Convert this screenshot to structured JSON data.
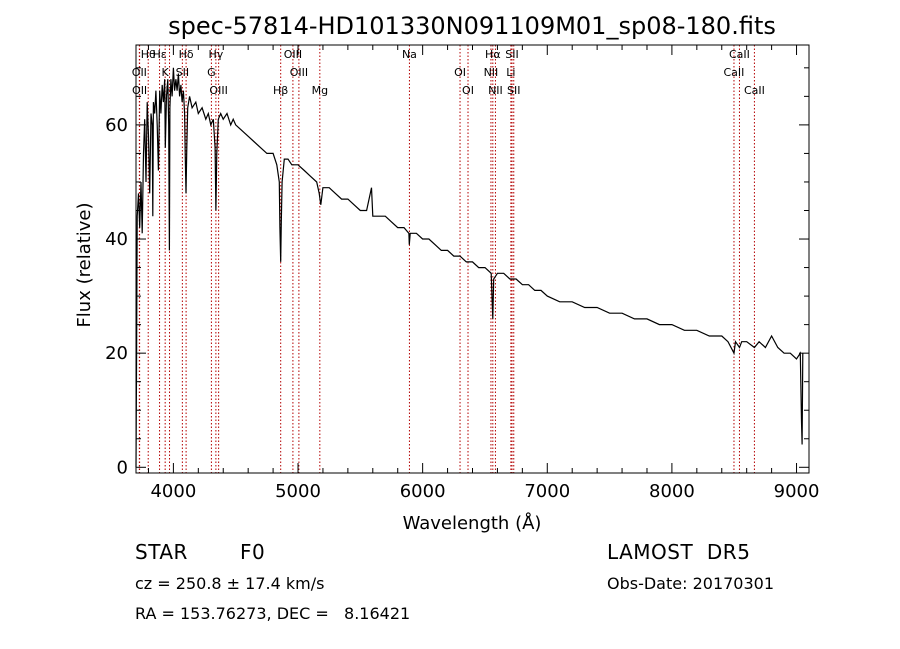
{
  "chart_data": {
    "type": "line",
    "title": "spec-57814-HD101330N091109M01_sp08-180.fits",
    "xlabel": "Wavelength (Å)",
    "ylabel": "Flux (relative)",
    "xlim": [
      3700,
      9100
    ],
    "ylim": [
      -1,
      74
    ],
    "xticks": [
      4000,
      5000,
      6000,
      7000,
      8000,
      9000
    ],
    "yticks": [
      0,
      20,
      40,
      60
    ],
    "grid": false,
    "series": [
      {
        "points": [
          [
            3700,
            0
          ],
          [
            3705,
            20
          ],
          [
            3710,
            44
          ],
          [
            3720,
            48
          ],
          [
            3730,
            42
          ],
          [
            3740,
            50
          ],
          [
            3750,
            41
          ],
          [
            3760,
            55
          ],
          [
            3770,
            61
          ],
          [
            3780,
            50
          ],
          [
            3790,
            64
          ],
          [
            3800,
            58
          ],
          [
            3810,
            48
          ],
          [
            3820,
            62
          ],
          [
            3830,
            60
          ],
          [
            3835,
            44
          ],
          [
            3840,
            64
          ],
          [
            3850,
            62
          ],
          [
            3860,
            66
          ],
          [
            3870,
            60
          ],
          [
            3880,
            52
          ],
          [
            3890,
            66
          ],
          [
            3900,
            62
          ],
          [
            3910,
            67
          ],
          [
            3920,
            64
          ],
          [
            3930,
            68
          ],
          [
            3935,
            56
          ],
          [
            3945,
            65
          ],
          [
            3955,
            68
          ],
          [
            3962,
            60
          ],
          [
            3968,
            38
          ],
          [
            3972,
            63
          ],
          [
            3980,
            68
          ],
          [
            3990,
            65
          ],
          [
            4000,
            70
          ],
          [
            4010,
            66
          ],
          [
            4020,
            68
          ],
          [
            4030,
            66
          ],
          [
            4040,
            69
          ],
          [
            4050,
            65
          ],
          [
            4060,
            67
          ],
          [
            4070,
            64
          ],
          [
            4080,
            66
          ],
          [
            4090,
            62
          ],
          [
            4095,
            55
          ],
          [
            4101,
            48
          ],
          [
            4108,
            56
          ],
          [
            4115,
            63
          ],
          [
            4130,
            65
          ],
          [
            4150,
            63
          ],
          [
            4180,
            64
          ],
          [
            4200,
            62
          ],
          [
            4230,
            63
          ],
          [
            4260,
            61
          ],
          [
            4280,
            62
          ],
          [
            4300,
            60
          ],
          [
            4320,
            61
          ],
          [
            4335,
            56
          ],
          [
            4341,
            45
          ],
          [
            4348,
            55
          ],
          [
            4360,
            61
          ],
          [
            4380,
            62
          ],
          [
            4400,
            61
          ],
          [
            4430,
            62
          ],
          [
            4460,
            60
          ],
          [
            4480,
            61
          ],
          [
            4500,
            60
          ],
          [
            4550,
            59
          ],
          [
            4600,
            58
          ],
          [
            4650,
            57
          ],
          [
            4700,
            56
          ],
          [
            4750,
            55
          ],
          [
            4800,
            55
          ],
          [
            4830,
            53
          ],
          [
            4850,
            50
          ],
          [
            4855,
            42
          ],
          [
            4861,
            36
          ],
          [
            4866,
            43
          ],
          [
            4872,
            50
          ],
          [
            4890,
            54
          ],
          [
            4920,
            54
          ],
          [
            4950,
            53
          ],
          [
            5000,
            53
          ],
          [
            5050,
            52
          ],
          [
            5100,
            51
          ],
          [
            5150,
            50
          ],
          [
            5170,
            48
          ],
          [
            5183,
            46
          ],
          [
            5200,
            49
          ],
          [
            5250,
            49
          ],
          [
            5300,
            48
          ],
          [
            5350,
            47
          ],
          [
            5400,
            47
          ],
          [
            5450,
            46
          ],
          [
            5500,
            45
          ],
          [
            5550,
            45
          ],
          [
            5590,
            49
          ],
          [
            5600,
            44
          ],
          [
            5650,
            44
          ],
          [
            5700,
            44
          ],
          [
            5750,
            43
          ],
          [
            5800,
            42
          ],
          [
            5850,
            42
          ],
          [
            5890,
            41
          ],
          [
            5893,
            39
          ],
          [
            5900,
            41
          ],
          [
            5950,
            41
          ],
          [
            6000,
            40
          ],
          [
            6050,
            40
          ],
          [
            6100,
            39
          ],
          [
            6150,
            38
          ],
          [
            6200,
            38
          ],
          [
            6250,
            37
          ],
          [
            6300,
            37
          ],
          [
            6350,
            36
          ],
          [
            6400,
            36
          ],
          [
            6450,
            35
          ],
          [
            6500,
            35
          ],
          [
            6550,
            34
          ],
          [
            6563,
            26
          ],
          [
            6570,
            33
          ],
          [
            6600,
            34
          ],
          [
            6650,
            34
          ],
          [
            6700,
            33
          ],
          [
            6750,
            33
          ],
          [
            6800,
            32
          ],
          [
            6850,
            32
          ],
          [
            6900,
            31
          ],
          [
            6950,
            31
          ],
          [
            7000,
            30
          ],
          [
            7100,
            29
          ],
          [
            7200,
            29
          ],
          [
            7300,
            28
          ],
          [
            7400,
            28
          ],
          [
            7500,
            27
          ],
          [
            7600,
            27
          ],
          [
            7700,
            26
          ],
          [
            7800,
            26
          ],
          [
            7900,
            25
          ],
          [
            8000,
            25
          ],
          [
            8100,
            24
          ],
          [
            8200,
            24
          ],
          [
            8300,
            23
          ],
          [
            8400,
            23
          ],
          [
            8450,
            22
          ],
          [
            8498,
            20
          ],
          [
            8510,
            22
          ],
          [
            8542,
            21
          ],
          [
            8560,
            22
          ],
          [
            8600,
            22
          ],
          [
            8662,
            21
          ],
          [
            8700,
            22
          ],
          [
            8750,
            21
          ],
          [
            8800,
            23
          ],
          [
            8850,
            21
          ],
          [
            8900,
            20
          ],
          [
            8950,
            20
          ],
          [
            9000,
            19
          ],
          [
            9030,
            20
          ],
          [
            9040,
            8
          ],
          [
            9045,
            4
          ],
          [
            9050,
            20
          ]
        ]
      }
    ],
    "lines": [
      {
        "label": "Hθ",
        "x": 3798
      },
      {
        "label": "OII",
        "x": 3727
      },
      {
        "label": "OII",
        "x": 3729
      },
      {
        "label": "Hε",
        "x": 3889
      },
      {
        "label": "K",
        "x": 3934
      },
      {
        "label": "H",
        "x": 3969
      },
      {
        "label": "Hδ",
        "x": 4102
      },
      {
        "label": "SII",
        "x": 4072
      },
      {
        "label": "OIII",
        "x": 4363
      },
      {
        "label": "Hγ",
        "x": 4341
      },
      {
        "label": "G",
        "x": 4305
      },
      {
        "label": "Hβ",
        "x": 4861
      },
      {
        "label": "OIII",
        "x": 4959
      },
      {
        "label": "OIII",
        "x": 5007
      },
      {
        "label": "Mg",
        "x": 5175
      },
      {
        "label": "Na",
        "x": 5894
      },
      {
        "label": "OI",
        "x": 6300
      },
      {
        "label": "OI",
        "x": 6364
      },
      {
        "label": "Hα",
        "x": 6563
      },
      {
        "label": "NII",
        "x": 6548
      },
      {
        "label": "NII",
        "x": 6584
      },
      {
        "label": "SII",
        "x": 6717
      },
      {
        "label": "Li",
        "x": 6708
      },
      {
        "label": "SII",
        "x": 6731
      },
      {
        "label": "CaII",
        "x": 8542
      },
      {
        "label": "CaII",
        "x": 8498
      },
      {
        "label": "CaII",
        "x": 8662
      }
    ],
    "line_color": "#b30000"
  },
  "footer": {
    "type_label": "STAR",
    "subclass": "F0",
    "survey": "LAMOST  DR5",
    "cz": "cz = 250.8 ± 17.4 km/s",
    "obs_date": "Obs-Date: 20170301",
    "coords": "RA = 153.76273, DEC =   8.16421"
  }
}
